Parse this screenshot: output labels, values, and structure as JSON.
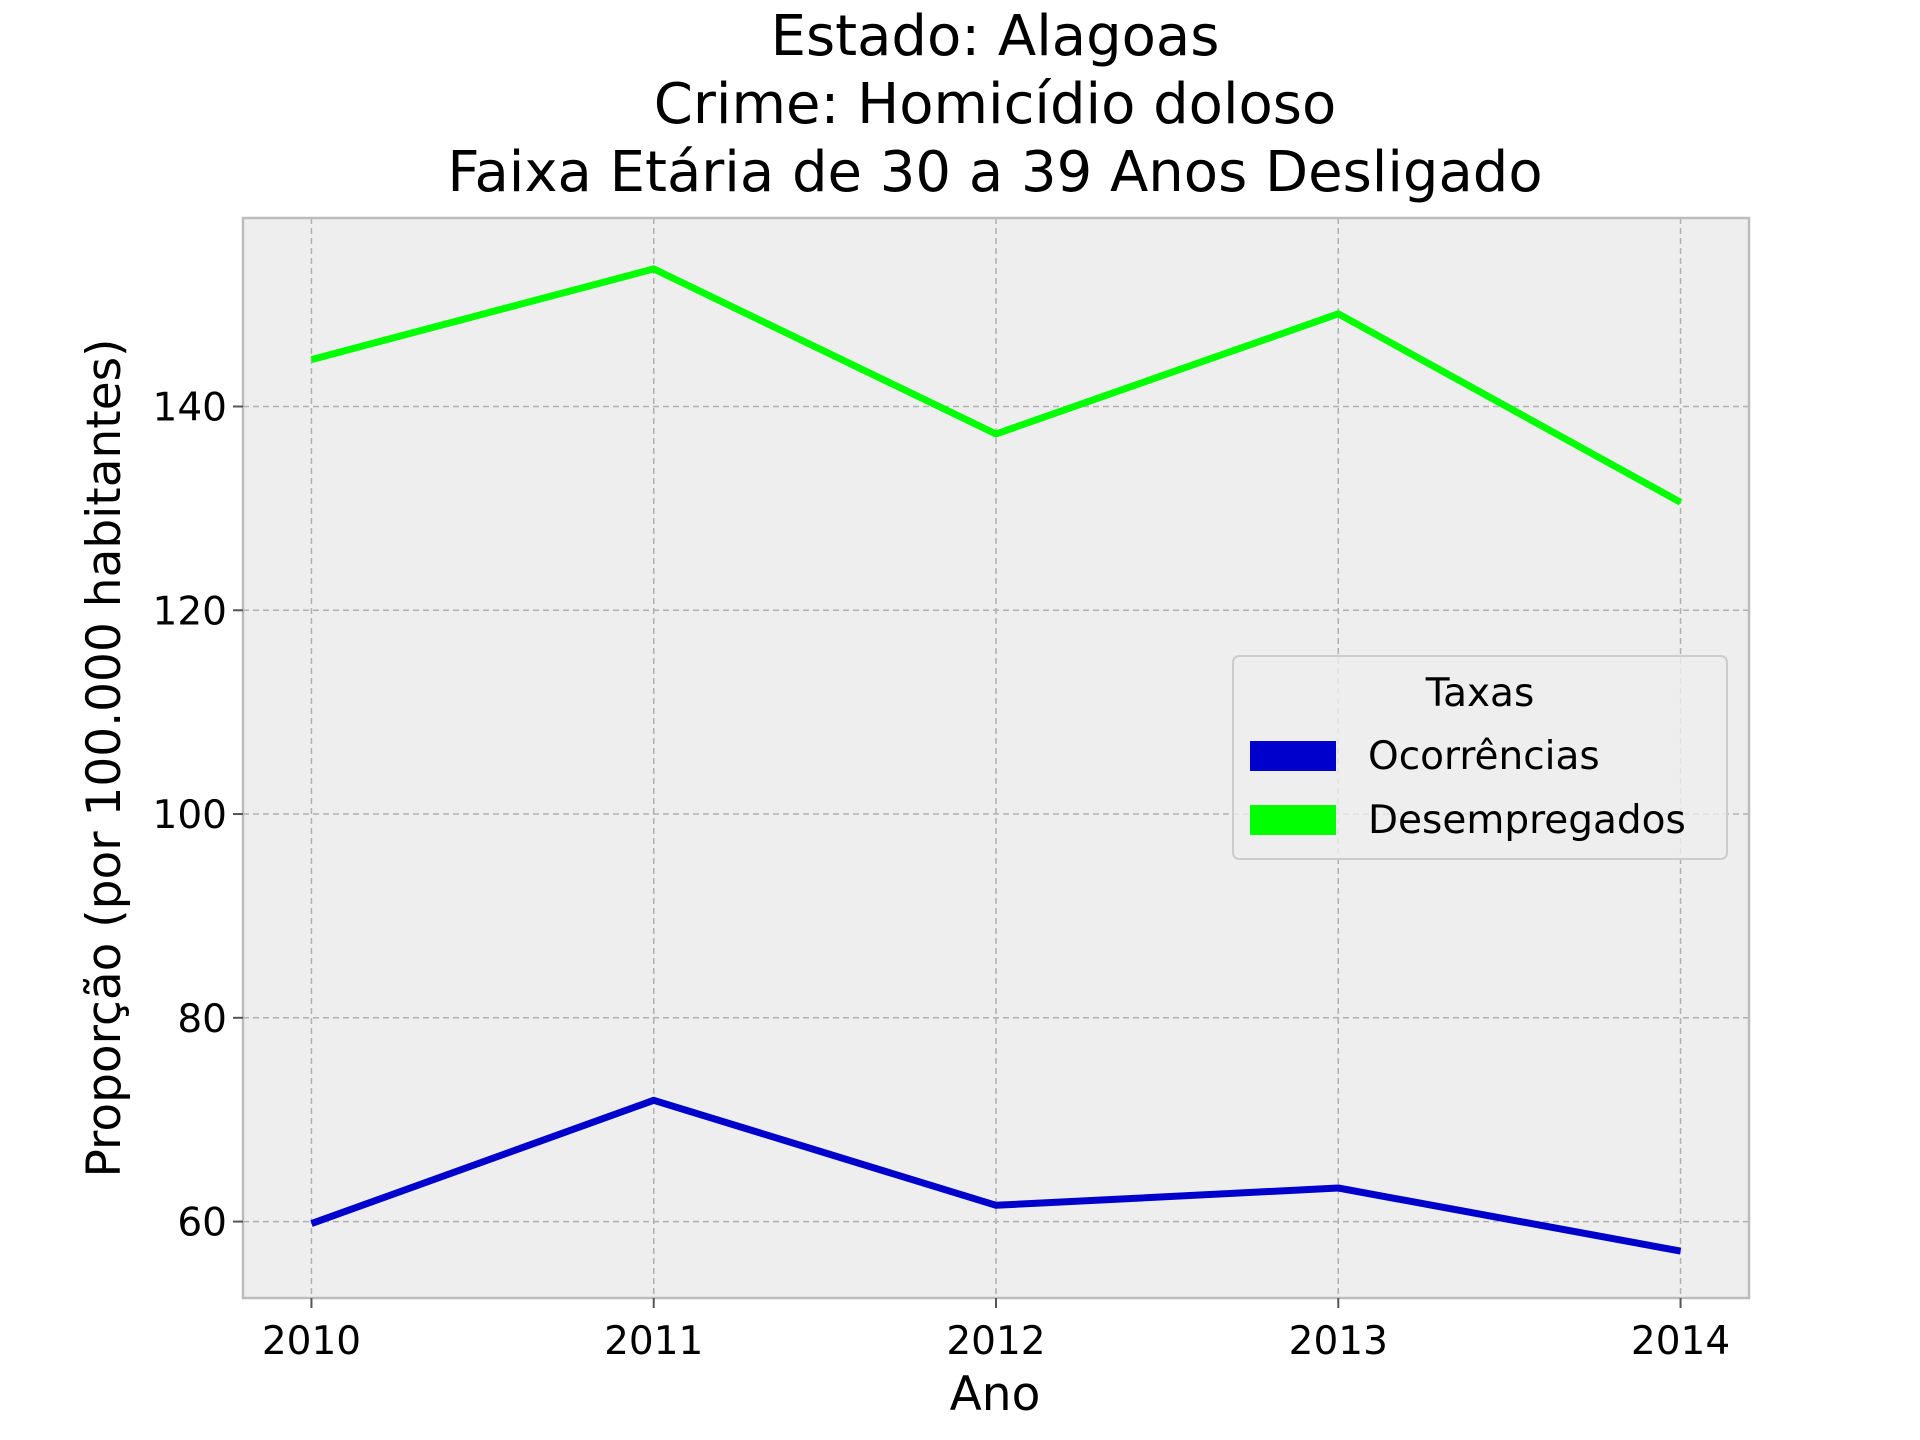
{
  "chart_data": {
    "type": "line",
    "title_lines": [
      "Estado: Alagoas",
      "Crime: Homicídio doloso",
      "Faixa Etária de 30 a 39 Anos   Desligado"
    ],
    "xlabel": "Ano",
    "ylabel": "Proporção (por 100.000 habitantes)",
    "x": [
      2010,
      2011,
      2012,
      2013,
      2014
    ],
    "x_tick_labels": [
      "2010",
      "2011",
      "2012",
      "2013",
      "2014"
    ],
    "y_ticks": [
      60,
      80,
      100,
      120,
      140
    ],
    "y_tick_labels": [
      "60",
      "80",
      "100",
      "120",
      "140"
    ],
    "xlim": [
      2009.8,
      2014.2
    ],
    "ylim": [
      52.5,
      158.5
    ],
    "grid": true,
    "legend": {
      "title": "Taxas",
      "placement": "center-right"
    },
    "series": [
      {
        "name": "Ocorrências",
        "color": "#0000cc",
        "values": [
          59.8,
          71.9,
          61.6,
          63.3,
          57.1
        ]
      },
      {
        "name": "Desempregados",
        "color": "#00ff00",
        "values": [
          144.6,
          153.5,
          137.3,
          149.1,
          130.6
        ]
      }
    ],
    "colors": {
      "plot_background": "#eeeeee",
      "axes_edge": "#bcbcbc",
      "grid": "#b0b0b0"
    }
  }
}
